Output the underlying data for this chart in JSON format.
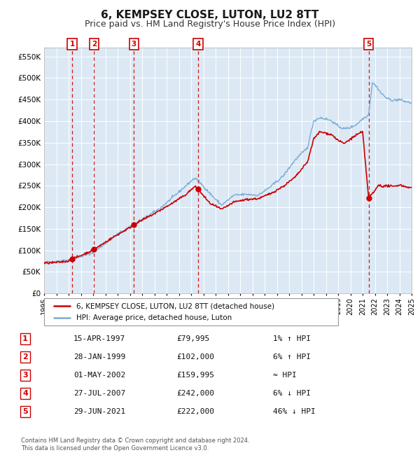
{
  "title": "6, KEMPSEY CLOSE, LUTON, LU2 8TT",
  "subtitle": "Price paid vs. HM Land Registry's House Price Index (HPI)",
  "title_fontsize": 11,
  "subtitle_fontsize": 9,
  "background_color": "#ffffff",
  "plot_bg_color": "#dce9f5",
  "grid_color": "#ffffff",
  "ylim": [
    0,
    570000
  ],
  "yticks": [
    0,
    50000,
    100000,
    150000,
    200000,
    250000,
    300000,
    350000,
    400000,
    450000,
    500000,
    550000
  ],
  "ytick_labels": [
    "£0",
    "£50K",
    "£100K",
    "£150K",
    "£200K",
    "£250K",
    "£300K",
    "£350K",
    "£400K",
    "£450K",
    "£500K",
    "£550K"
  ],
  "sale_line_color": "#cc0000",
  "hpi_line_color": "#7aadd4",
  "sale_marker_color": "#cc0000",
  "vline_color": "#cc0000",
  "label_box_color": "#cc0000",
  "label_text_color": "#cc0000",
  "legend_sale_label": "6, KEMPSEY CLOSE, LUTON, LU2 8TT (detached house)",
  "legend_hpi_label": "HPI: Average price, detached house, Luton",
  "footer": "Contains HM Land Registry data © Crown copyright and database right 2024.\nThis data is licensed under the Open Government Licence v3.0.",
  "sales": [
    {
      "num": 1,
      "date_label": "15-APR-1997",
      "price": 79995,
      "year": 1997.29
    },
    {
      "num": 2,
      "date_label": "28-JAN-1999",
      "price": 102000,
      "year": 1999.08
    },
    {
      "num": 3,
      "date_label": "01-MAY-2002",
      "price": 159995,
      "year": 2002.33
    },
    {
      "num": 4,
      "date_label": "27-JUL-2007",
      "price": 242000,
      "year": 2007.57
    },
    {
      "num": 5,
      "date_label": "29-JUN-2021",
      "price": 222000,
      "year": 2021.49
    }
  ],
  "table_rows": [
    {
      "num": 1,
      "date": "15-APR-1997",
      "price": "£79,995",
      "hpi": "1% ↑ HPI"
    },
    {
      "num": 2,
      "date": "28-JAN-1999",
      "price": "£102,000",
      "hpi": "6% ↑ HPI"
    },
    {
      "num": 3,
      "date": "01-MAY-2002",
      "price": "£159,995",
      "hpi": "≈ HPI"
    },
    {
      "num": 4,
      "date": "27-JUL-2007",
      "price": "£242,000",
      "hpi": "6% ↓ HPI"
    },
    {
      "num": 5,
      "date": "29-JUN-2021",
      "price": "£222,000",
      "hpi": "46% ↓ HPI"
    }
  ]
}
